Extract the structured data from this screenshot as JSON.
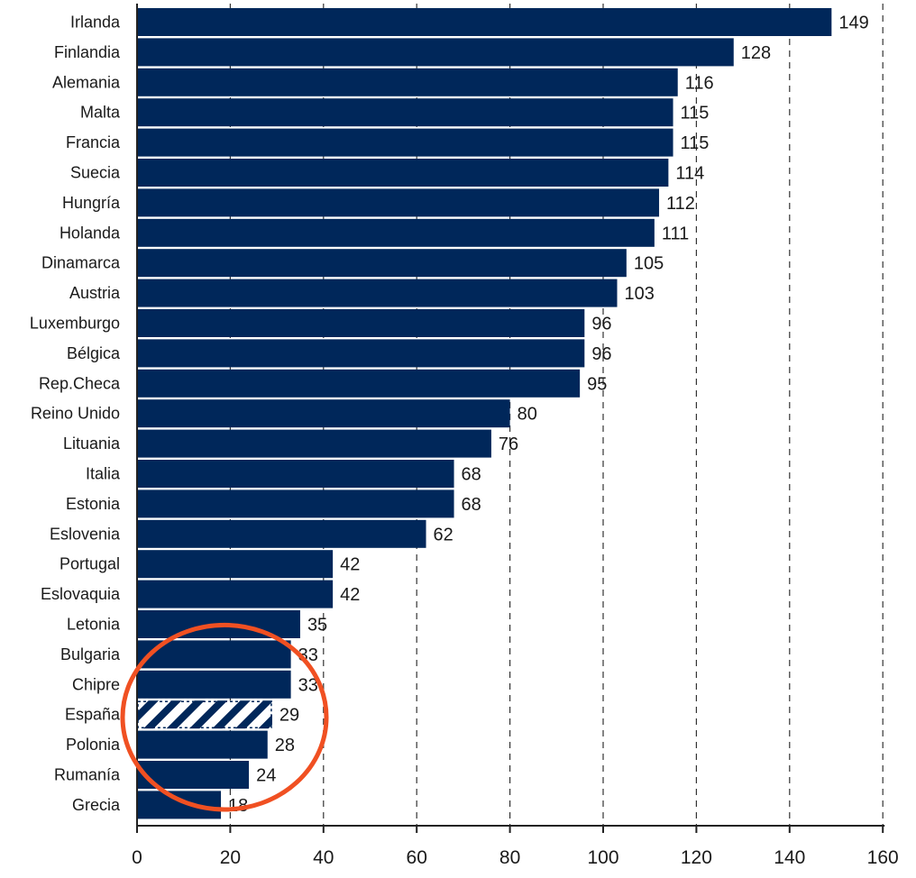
{
  "chart_data": {
    "type": "bar",
    "orientation": "horizontal",
    "title": "",
    "xlabel": "",
    "ylabel": "",
    "categories": [
      "Irlanda",
      "Finlandia",
      "Alemania",
      "Malta",
      "Francia",
      "Suecia",
      "Hungría",
      "Holanda",
      "Dinamarca",
      "Austria",
      "Luxemburgo",
      "Bélgica",
      "Rep.Checa",
      "Reino Unido",
      "Lituania",
      "Italia",
      "Estonia",
      "Eslovenia",
      "Portugal",
      "Eslovaquia",
      "Letonia",
      "Bulgaria",
      "Chipre",
      "España",
      "Polonia",
      "Rumanía",
      "Grecia"
    ],
    "values": [
      149,
      128,
      116,
      115,
      115,
      114,
      112,
      111,
      105,
      103,
      96,
      96,
      95,
      80,
      76,
      68,
      68,
      62,
      42,
      42,
      35,
      33,
      33,
      29,
      28,
      24,
      18
    ],
    "value_labels": [
      "149",
      "128",
      "116",
      "115",
      "115",
      "114",
      "112",
      "111",
      "105",
      "103",
      "96",
      "96",
      "95",
      "80",
      "76",
      "68",
      "68",
      "62",
      "42",
      "42",
      "35",
      "33",
      "33",
      "29",
      "28",
      "24",
      "18"
    ],
    "xlim": [
      0,
      160
    ],
    "x_ticks": [
      "0",
      "20",
      "40",
      "60",
      "80",
      "100",
      "120",
      "140",
      "160"
    ],
    "grid": "vertical dashed",
    "legend": "none",
    "colors": {
      "bar": "#00275a",
      "highlight_hatch": "#00275a",
      "annotation_ellipse": "#f05022"
    },
    "highlighted_category": "España",
    "annotation": {
      "shape": "ellipse",
      "encloses": [
        "Bulgaria",
        "Chipre",
        "España",
        "Polonia",
        "Rumanía"
      ]
    }
  }
}
